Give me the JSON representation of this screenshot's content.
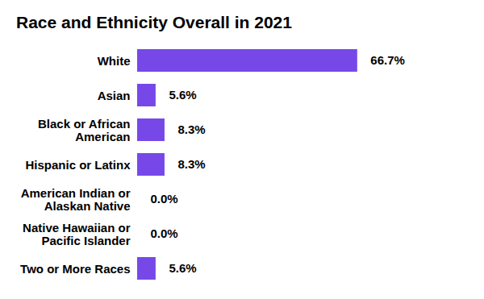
{
  "chart_data": {
    "type": "bar",
    "title": "Race and Ethnicity Overall in 2021",
    "orientation": "horizontal",
    "categories": [
      "White",
      "Asian",
      "Black or African American",
      "Hispanic or Latinx",
      "American Indian or Alaskan Native",
      "Native Hawaiian or Pacific Islander",
      "Two or More Races"
    ],
    "values": [
      66.7,
      5.6,
      8.3,
      8.3,
      0.0,
      0.0,
      5.6
    ],
    "value_labels": [
      "66.7%",
      "5.6%",
      "8.3%",
      "8.3%",
      "0.0%",
      "0.0%",
      "5.6%"
    ],
    "color": "#7748e8",
    "xlim": [
      0,
      100
    ],
    "data_labels": true,
    "tick_labels": "y",
    "grid": false
  }
}
